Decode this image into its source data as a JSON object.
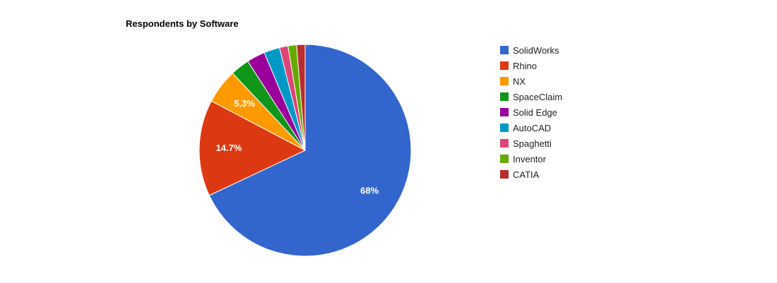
{
  "chart_data": {
    "type": "pie",
    "title": "Respondents by Software",
    "categories": [
      "SolidWorks",
      "Rhino",
      "NX",
      "SpaceClaim",
      "Solid Edge",
      "AutoCAD",
      "Spaghetti",
      "Inventor",
      "CATIA"
    ],
    "values": [
      68,
      14.7,
      5.3,
      2.9,
      2.8,
      2.4,
      1.3,
      1.3,
      1.3
    ],
    "value_unit": "%",
    "slice_labels": [
      "68%",
      "14.7%",
      "5.3%",
      "",
      "",
      "",
      "",
      "",
      ""
    ],
    "colors": [
      "#3366cc",
      "#dc3912",
      "#ff9900",
      "#109618",
      "#990099",
      "#0099c6",
      "#dd4477",
      "#66aa00",
      "#b82e2e"
    ],
    "start_angle_deg": 0,
    "direction": "clockwise",
    "legend_position": "right"
  }
}
